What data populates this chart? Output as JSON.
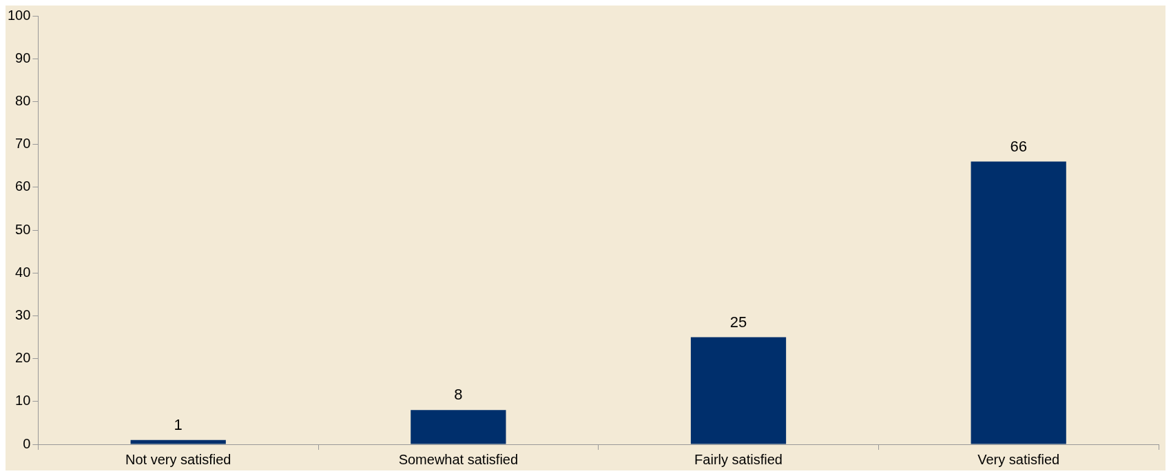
{
  "chart_data": {
    "type": "bar",
    "categories": [
      "Not very satisfied",
      "Somewhat satisfied",
      "Fairly satisfied",
      "Very satisfied"
    ],
    "values": [
      1,
      8,
      25,
      66
    ],
    "color": "#002f6c",
    "ylim": [
      0,
      100
    ],
    "yticks": [
      0,
      10,
      20,
      30,
      40,
      50,
      60,
      70,
      80,
      90,
      100
    ],
    "grid": false,
    "legend": false,
    "data_labels": true
  }
}
